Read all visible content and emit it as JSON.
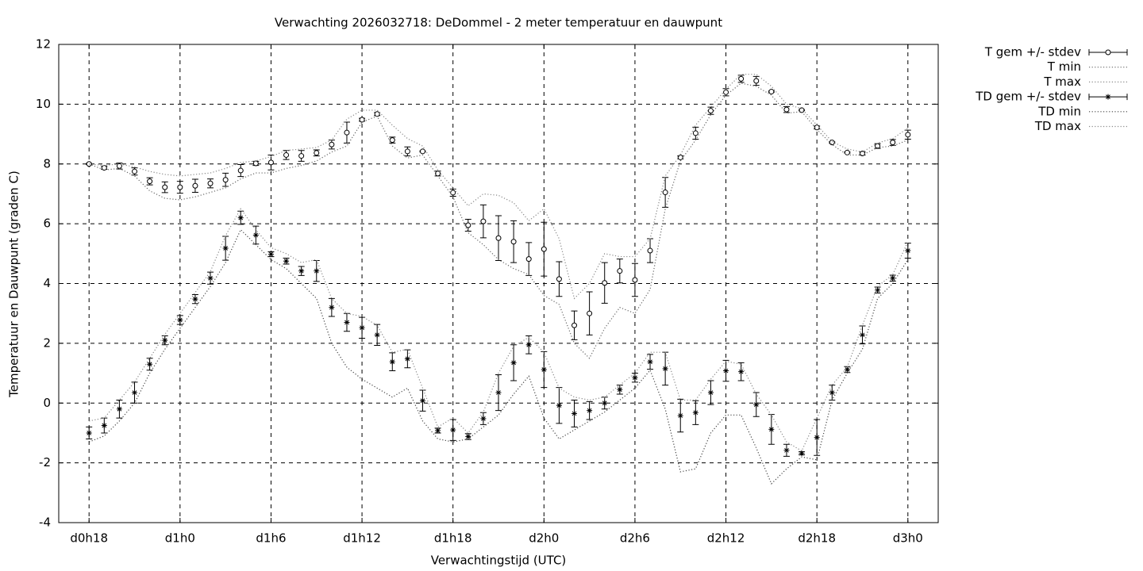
{
  "chart_data": {
    "type": "errorbar",
    "title": "Verwachting 2026032718: DeDommel - 2 meter temperatuur en dauwpunt",
    "xlabel": "Verwachtingstijd (UTC)",
    "ylabel": "Temperatuur en Dauwpunt (graden C)",
    "x": [
      18,
      19,
      20,
      21,
      22,
      23,
      24,
      25,
      26,
      27,
      28,
      29,
      30,
      31,
      32,
      33,
      34,
      35,
      36,
      37,
      38,
      39,
      40,
      41,
      42,
      43,
      44,
      45,
      46,
      47,
      48,
      49,
      50,
      51,
      52,
      53,
      54,
      55,
      56,
      57,
      58,
      59,
      60,
      61,
      62,
      63,
      64,
      65,
      66,
      67,
      68,
      69,
      70,
      71,
      72
    ],
    "xlim": [
      16,
      74
    ],
    "xticks": [
      {
        "value": 18,
        "label": "d0h18"
      },
      {
        "value": 24,
        "label": "d1h0"
      },
      {
        "value": 30,
        "label": "d1h6"
      },
      {
        "value": 36,
        "label": "d1h12"
      },
      {
        "value": 42,
        "label": "d1h18"
      },
      {
        "value": 48,
        "label": "d2h0"
      },
      {
        "value": 54,
        "label": "d2h6"
      },
      {
        "value": 60,
        "label": "d2h12"
      },
      {
        "value": 66,
        "label": "d2h18"
      },
      {
        "value": 72,
        "label": "d3h0"
      }
    ],
    "ylim": [
      -4,
      12
    ],
    "yticks": [
      -4,
      -2,
      0,
      2,
      4,
      6,
      8,
      10,
      12
    ],
    "grid": true,
    "legend": "outside-top-right",
    "series": [
      {
        "name": "T gem +/- stdev",
        "color": "#000000",
        "style": "errorbars",
        "marker": "circle",
        "values": [
          8.0,
          7.87,
          7.93,
          7.75,
          7.42,
          7.22,
          7.22,
          7.27,
          7.35,
          7.47,
          7.78,
          8.02,
          8.05,
          8.3,
          8.27,
          8.37,
          8.65,
          9.05,
          9.48,
          9.67,
          8.8,
          8.42,
          8.42,
          7.68,
          7.04,
          5.95,
          6.08,
          5.52,
          5.4,
          4.82,
          5.15,
          4.15,
          2.6,
          3.0,
          4.02,
          4.42,
          4.12,
          5.1,
          7.05,
          8.22,
          9.03,
          9.78,
          10.4,
          10.85,
          10.78,
          10.42,
          9.82,
          9.8,
          9.22,
          8.72,
          8.38,
          8.35,
          8.6,
          8.72,
          8.98
        ],
        "errors": [
          0.02,
          0.05,
          0.1,
          0.12,
          0.12,
          0.18,
          0.2,
          0.22,
          0.15,
          0.22,
          0.2,
          0.07,
          0.25,
          0.15,
          0.18,
          0.1,
          0.15,
          0.35,
          0.05,
          0.05,
          0.1,
          0.15,
          0.02,
          0.08,
          0.12,
          0.2,
          0.55,
          0.75,
          0.7,
          0.55,
          0.9,
          0.58,
          0.48,
          0.72,
          0.68,
          0.4,
          0.55,
          0.4,
          0.5,
          0.05,
          0.2,
          0.12,
          0.12,
          0.12,
          0.15,
          0.02,
          0.1,
          0.02,
          0.05,
          0.02,
          0.02,
          0.05,
          0.08,
          0.1,
          0.15
        ]
      },
      {
        "name": "T min",
        "color": "#666666",
        "style": "dotted",
        "values": [
          8.0,
          7.8,
          7.85,
          7.6,
          7.1,
          6.85,
          6.8,
          6.9,
          7.05,
          7.2,
          7.5,
          7.7,
          7.7,
          7.85,
          7.95,
          8.1,
          8.4,
          8.6,
          9.4,
          9.6,
          8.6,
          8.2,
          8.3,
          7.6,
          6.9,
          5.7,
          5.3,
          4.8,
          4.5,
          4.3,
          3.6,
          3.3,
          2.0,
          1.5,
          2.5,
          3.2,
          3.0,
          3.8,
          6.5,
          8.1,
          8.8,
          9.65,
          10.3,
          10.7,
          10.6,
          10.3,
          9.7,
          9.75,
          9.15,
          8.65,
          8.3,
          8.3,
          8.55,
          8.6,
          8.8
        ]
      },
      {
        "name": "T max",
        "color": "#888888",
        "style": "dotted",
        "values": [
          8.0,
          7.95,
          8.0,
          7.9,
          7.75,
          7.65,
          7.6,
          7.65,
          7.7,
          7.85,
          8.05,
          8.1,
          8.25,
          8.45,
          8.5,
          8.55,
          8.8,
          9.5,
          9.8,
          9.8,
          9.3,
          8.85,
          8.6,
          7.8,
          7.2,
          6.6,
          7.0,
          6.95,
          6.7,
          6.1,
          6.5,
          5.5,
          3.5,
          4.0,
          5.0,
          4.9,
          4.9,
          5.5,
          7.6,
          8.3,
          9.3,
          9.9,
          10.5,
          11.0,
          11.0,
          10.6,
          10.0,
          9.85,
          9.3,
          8.75,
          8.5,
          8.4,
          8.7,
          8.85,
          9.2
        ]
      },
      {
        "name": "TD gem +/- stdev",
        "color": "#000000",
        "style": "errorbars",
        "marker": "star",
        "values": [
          -1.0,
          -0.75,
          -0.2,
          0.35,
          1.3,
          2.1,
          2.78,
          3.48,
          4.18,
          5.18,
          6.2,
          5.62,
          4.98,
          4.75,
          4.42,
          4.42,
          3.2,
          2.7,
          2.52,
          2.28,
          1.38,
          1.48,
          0.08,
          -0.92,
          -0.9,
          -1.12,
          -0.52,
          0.35,
          1.35,
          1.95,
          1.12,
          -0.08,
          -0.35,
          -0.25,
          0.0,
          0.45,
          0.85,
          1.38,
          1.15,
          -0.42,
          -0.32,
          0.35,
          1.08,
          1.05,
          -0.05,
          -0.88,
          -1.58,
          -1.68,
          -1.15,
          0.35,
          1.12,
          2.28,
          3.78,
          4.18,
          5.1
        ],
        "errors": [
          0.2,
          0.25,
          0.3,
          0.35,
          0.2,
          0.15,
          0.15,
          0.15,
          0.2,
          0.4,
          0.22,
          0.3,
          0.08,
          0.1,
          0.15,
          0.35,
          0.3,
          0.3,
          0.35,
          0.35,
          0.3,
          0.3,
          0.35,
          0.08,
          0.35,
          0.1,
          0.2,
          0.6,
          0.6,
          0.3,
          0.6,
          0.6,
          0.45,
          0.3,
          0.2,
          0.15,
          0.15,
          0.25,
          0.55,
          0.55,
          0.4,
          0.4,
          0.35,
          0.3,
          0.4,
          0.5,
          0.2,
          0.05,
          0.6,
          0.25,
          0.1,
          0.3,
          0.1,
          0.1,
          0.25
        ]
      },
      {
        "name": "TD min",
        "color": "#444444",
        "style": "dotted",
        "values": [
          -1.3,
          -1.1,
          -0.6,
          0.0,
          1.0,
          1.8,
          2.5,
          3.2,
          3.9,
          4.7,
          5.8,
          5.3,
          4.8,
          4.5,
          4.0,
          3.5,
          2.0,
          1.2,
          0.8,
          0.5,
          0.2,
          0.5,
          -0.6,
          -1.2,
          -1.3,
          -1.2,
          -0.8,
          -0.4,
          0.3,
          0.9,
          -0.5,
          -1.2,
          -0.9,
          -0.6,
          -0.3,
          0.1,
          0.5,
          1.1,
          -0.2,
          -2.3,
          -2.2,
          -1.0,
          -0.4,
          -0.4,
          -1.5,
          -2.7,
          -2.2,
          -1.8,
          -1.9,
          0.1,
          1.0,
          1.8,
          3.5,
          4.0,
          4.8
        ]
      },
      {
        "name": "TD max",
        "color": "#888888",
        "style": "dotted",
        "values": [
          -0.6,
          -0.5,
          0.1,
          0.7,
          1.5,
          2.3,
          3.0,
          3.7,
          4.4,
          5.6,
          6.5,
          5.8,
          5.2,
          5.0,
          4.7,
          4.8,
          3.5,
          3.0,
          2.9,
          2.6,
          1.7,
          1.8,
          0.5,
          -0.8,
          -0.5,
          -1.0,
          -0.3,
          1.0,
          1.9,
          2.2,
          1.7,
          0.5,
          0.2,
          0.1,
          0.2,
          0.6,
          1.0,
          1.7,
          1.7,
          0.1,
          0.1,
          0.8,
          1.4,
          1.3,
          0.3,
          -0.4,
          -1.3,
          -1.6,
          -0.5,
          0.6,
          1.2,
          2.6,
          3.9,
          4.3,
          5.4
        ]
      }
    ]
  }
}
